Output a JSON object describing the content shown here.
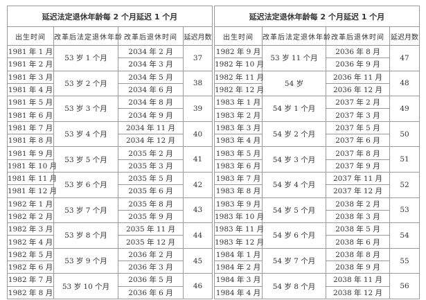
{
  "headers": [
    "出生时间",
    "改革后法定退休年龄",
    "改革后退休时间",
    "延迟月数"
  ],
  "tables": [
    {
      "title": "延迟法定退休年龄每 2 个月延迟 1 个月",
      "groups": [
        {
          "births": [
            "1981 年 1 月",
            "1981 年 2 月"
          ],
          "age": "53 岁 1 个月",
          "times": [
            "2034 年 2 月",
            "2034 年 3 月"
          ],
          "delay": "37"
        },
        {
          "births": [
            "1981 年 3 月",
            "1981 年 4 月"
          ],
          "age": "53 岁 2 个月",
          "times": [
            "2034 年 5 月",
            "2034 年 6 月"
          ],
          "delay": "38"
        },
        {
          "births": [
            "1981 年 5 月",
            "1981 年 6 月"
          ],
          "age": "53 岁 3 个月",
          "times": [
            "2034 年 8 月",
            "2034 年 9 月"
          ],
          "delay": "39"
        },
        {
          "births": [
            "1981 年 7 月",
            "1981 年 8 月"
          ],
          "age": "53 岁 4 个月",
          "times": [
            "2034 年 11 月",
            "2034 年 12 月"
          ],
          "delay": "40"
        },
        {
          "births": [
            "1981 年 9 月",
            "1981 年 10 月"
          ],
          "age": "53 岁 5 个月",
          "times": [
            "2035 年 2 月",
            "2035 年 3 月"
          ],
          "delay": "41"
        },
        {
          "births": [
            "1981 年 11 月",
            "1981 年 12 月"
          ],
          "age": "53 岁 6 个月",
          "times": [
            "2035 年 5 月",
            "2035 年 6 月"
          ],
          "delay": "42"
        },
        {
          "births": [
            "1982 年 1 月",
            "1982 年 2 月"
          ],
          "age": "53 岁 7 个月",
          "times": [
            "2035 年 8 月",
            "2035 年 9 月"
          ],
          "delay": "43"
        },
        {
          "births": [
            "1982 年 3 月",
            "1982 年 4 月"
          ],
          "age": "53 岁 8 个月",
          "times": [
            "2035 年 11 月",
            "2035 年 12 月"
          ],
          "delay": "44"
        },
        {
          "births": [
            "1982 年 5 月",
            "1982 年 6 月"
          ],
          "age": "53 岁 9 个月",
          "times": [
            "2036 年 2 月",
            "2036 年 3 月"
          ],
          "delay": "45"
        },
        {
          "births": [
            "1982 年 7 月",
            "1982 年 8 月"
          ],
          "age": "53 岁 10 个月",
          "times": [
            "2036 年 5 月",
            "2036 年 6 月"
          ],
          "delay": "46"
        }
      ]
    },
    {
      "title": "延迟法定退休年龄每 2 个月延迟 1 个月",
      "groups": [
        {
          "births": [
            "1982 年 9 月",
            "1982 年 10 月"
          ],
          "age": "53 岁 11 个月",
          "times": [
            "2036 年 8 月",
            "2036 年 9 月"
          ],
          "delay": "47"
        },
        {
          "births": [
            "1982 年 11 月",
            "1982 年 12 月"
          ],
          "age": "54 岁",
          "times": [
            "2036 年 11 月",
            "2036 年 12 月"
          ],
          "delay": "48"
        },
        {
          "births": [
            "1983 年 1 月",
            "1983 年 2 月"
          ],
          "age": "54 岁 1 个月",
          "times": [
            "2037 年 2 月",
            "2037 年 3 月"
          ],
          "delay": "49"
        },
        {
          "births": [
            "1983 年 3 月",
            "1983 年 4 月"
          ],
          "age": "54 岁 2 个月",
          "times": [
            "2037 年 5 月",
            "2037 年 6 月"
          ],
          "delay": "50"
        },
        {
          "births": [
            "1983 年 5 月",
            "1983 年 6 月"
          ],
          "age": "54 岁 3 个月",
          "times": [
            "2037 年 8 月",
            "2037 年 9 月"
          ],
          "delay": "51"
        },
        {
          "births": [
            "1983 年 7 月",
            "1983 年 8 月"
          ],
          "age": "54 岁 4 个月",
          "times": [
            "2037 年 11 月",
            "2037 年 12 月"
          ],
          "delay": "52"
        },
        {
          "births": [
            "1983 年 9 月",
            "1983 年 10 月"
          ],
          "age": "54 岁 5 个月",
          "times": [
            "2038 年 2 月",
            "2038 年 3 月"
          ],
          "delay": "53"
        },
        {
          "births": [
            "1983 年 11 月",
            "1983 年 12 月"
          ],
          "age": "54 岁 6 个月",
          "times": [
            "2038 年 5 月",
            "2038 年 6 月"
          ],
          "delay": "54"
        },
        {
          "births": [
            "1984 年 1 月",
            "1984 年 2 月"
          ],
          "age": "54 岁 7 个月",
          "times": [
            "2038 年 8 月",
            "2038 年 9 月"
          ],
          "delay": "55"
        },
        {
          "births": [
            "1984 年 3 月",
            "1984 年 4 月"
          ],
          "age": "54 岁 8 个月",
          "times": [
            "2038 年 11 月",
            "2038 年 12 月"
          ],
          "delay": "56"
        }
      ]
    }
  ]
}
